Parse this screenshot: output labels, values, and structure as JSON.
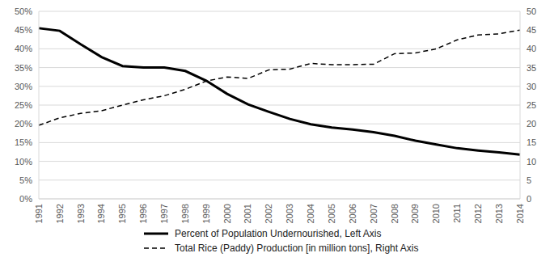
{
  "chart_data": {
    "type": "line",
    "categories": [
      "1991",
      "1992",
      "1993",
      "1994",
      "1995",
      "1996",
      "1997",
      "1998",
      "1999",
      "2000",
      "2001",
      "2002",
      "2003",
      "2004",
      "2005",
      "2006",
      "2007",
      "2008",
      "2009",
      "2010",
      "2011",
      "2012",
      "2013",
      "2014"
    ],
    "series": [
      {
        "name": "Percent of Population Undernourished, Left Axis",
        "color": "#000000",
        "line_style": "solid",
        "axis": "y",
        "values": [
          45.5,
          44.8,
          41.2,
          37.8,
          35.4,
          35.0,
          35.0,
          34.1,
          31.5,
          28.0,
          25.2,
          23.2,
          21.3,
          19.9,
          19.0,
          18.5,
          17.8,
          16.8,
          15.5,
          14.5,
          13.5,
          12.9,
          12.4,
          11.8
        ]
      },
      {
        "name": "Total Rice (Paddy) Production [in million tons], Right Axis",
        "color": "#000000",
        "line_style": "dashed",
        "axis": "y2",
        "values": [
          19.6,
          21.6,
          22.8,
          23.5,
          25.0,
          26.4,
          27.5,
          29.2,
          31.4,
          32.5,
          32.1,
          34.4,
          34.6,
          36.1,
          35.8,
          35.8,
          35.9,
          38.7,
          38.9,
          40.0,
          42.4,
          43.7,
          44.0,
          45.0
        ]
      }
    ],
    "ylim": [
      0,
      50
    ],
    "yticks": [
      {
        "value": 0,
        "label": "0%"
      },
      {
        "value": 5,
        "label": "5%"
      },
      {
        "value": 10,
        "label": "10%"
      },
      {
        "value": 15,
        "label": "15%"
      },
      {
        "value": 20,
        "label": "20%"
      },
      {
        "value": 25,
        "label": "25%"
      },
      {
        "value": 30,
        "label": "30%"
      },
      {
        "value": 35,
        "label": "35%"
      },
      {
        "value": 40,
        "label": "40%"
      },
      {
        "value": 45,
        "label": "45%"
      },
      {
        "value": 50,
        "label": "50%"
      }
    ],
    "y2lim": [
      0,
      50
    ],
    "y2ticks": [
      0,
      5,
      10,
      15,
      20,
      25,
      30,
      35,
      40,
      45,
      50
    ],
    "grid": true,
    "legend": "bottom"
  }
}
